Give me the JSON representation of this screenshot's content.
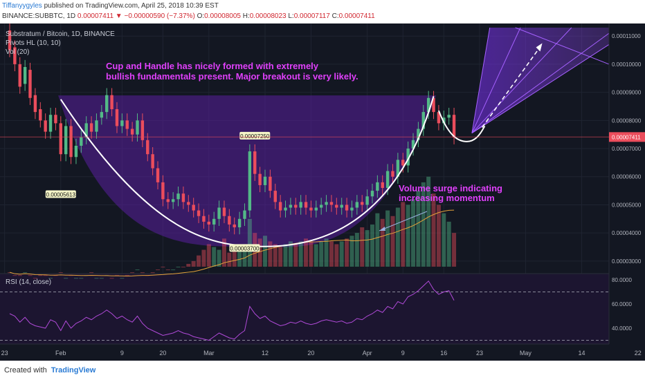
{
  "header": {
    "author": "Tiffanyygyles",
    "published_text": "published on TradingView.com, April 25, 2018 10:39 EST",
    "symbol": "BINANCE:SUBBTC, 1D",
    "last_price": "0.00007411",
    "change": "▼ −0.00000590 (−7.37%)",
    "o_label": "O:",
    "o_value": "0.00008005",
    "h_label": "H:",
    "h_value": "0.00008023",
    "l_label": "L:",
    "l_value": "0.00007117",
    "c_label": "C:",
    "c_value": "0.00007411"
  },
  "legend": {
    "pair": "Substratum / Bitcoin, 1D, BINANCE",
    "pivots": "Pivots HL (10, 10)",
    "vol": "Vol (20)",
    "rsi": "RSI (14, close)"
  },
  "annotations": {
    "cup_line1": "Cup and Handle has nicely formed with extremely",
    "cup_line2": "bullish fundamentals present. Major breakout is very likely.",
    "vol_line1": "Volume surge indicating",
    "vol_line2": "increasing momentum"
  },
  "footer": {
    "created_with": "Created with",
    "brand": "TradingView"
  },
  "colors": {
    "up": "#53b987",
    "down": "#eb4d5c",
    "purple": "#8b2bd8",
    "annotation": "#e040fb",
    "bg": "#131722"
  },
  "chart_data": {
    "type": "candlestick",
    "price_axis": [
      "0.00011000",
      "0.00010000",
      "0.00009000",
      "0.00008000",
      "0.00007000",
      "0.00006000",
      "0.00005000",
      "0.00004000",
      "0.00003000"
    ],
    "price_ticks": [
      0.00011,
      0.0001,
      9e-05,
      8e-05,
      7e-05,
      6e-05,
      5e-05,
      4e-05,
      3e-05
    ],
    "price_range": [
      2.8e-05,
      0.000113
    ],
    "last_price_label": "0.00007411",
    "last_price": 7.411e-05,
    "pivot_labels": [
      {
        "text": "0.00005613",
        "index": 10,
        "value": 5.613e-05,
        "pos": "below"
      },
      {
        "text": "0.00007250",
        "index": 48,
        "value": 7.25e-05,
        "pos": "above"
      },
      {
        "text": "0.00003700",
        "index": 46,
        "value": 3.7e-05,
        "pos": "below"
      }
    ],
    "time_axis": [
      "23",
      "Feb",
      "9",
      "20",
      "Mar",
      "12",
      "20",
      "Apr",
      "9",
      "16",
      "23",
      "May",
      "14",
      "22"
    ],
    "time_axis_index": [
      -1,
      10,
      22,
      30,
      39,
      50,
      59,
      70,
      77,
      85,
      92,
      101,
      112,
      123
    ],
    "candles": [
      [
        0.000112,
        0.000105
      ],
      [
        0.000106,
        0.0001
      ],
      [
        0.0001,
        9.2e-05
      ],
      [
        9.3e-05,
        9.9e-05
      ],
      [
        9.8e-05,
        8.8e-05
      ],
      [
        8.9e-05,
        8.3e-05
      ],
      [
        8.4e-05,
        8e-05
      ],
      [
        8e-05,
        7.6e-05
      ],
      [
        7.6e-05,
        8.2e-05
      ],
      [
        8.2e-05,
        7.9e-05
      ],
      [
        7.9e-05,
        6.8e-05
      ],
      [
        6.8e-05,
        7.8e-05
      ],
      [
        7.8e-05,
        6.7e-05
      ],
      [
        6.7e-05,
        7.1e-05
      ],
      [
        7.1e-05,
        7.4e-05
      ],
      [
        7.4e-05,
        7.9e-05
      ],
      [
        7.9e-05,
        7.6e-05
      ],
      [
        7.6e-05,
        8e-05
      ],
      [
        8.1e-05,
        8.3e-05
      ],
      [
        8.3e-05,
        8.9e-05
      ],
      [
        8.9e-05,
        8.4e-05
      ],
      [
        8.4e-05,
        7.8e-05
      ],
      [
        7.8e-05,
        8e-05
      ],
      [
        8e-05,
        7.7e-05
      ],
      [
        7.7e-05,
        7.5e-05
      ],
      [
        7.5e-05,
        8e-05
      ],
      [
        8e-05,
        7.3e-05
      ],
      [
        7.3e-05,
        6.8e-05
      ],
      [
        6.8e-05,
        6.3e-05
      ],
      [
        6.3e-05,
        5.8e-05
      ],
      [
        5.8e-05,
        5.2e-05
      ],
      [
        5.2e-05,
        5.1e-05
      ],
      [
        5.1e-05,
        5.2e-05
      ],
      [
        5.2e-05,
        5.4e-05
      ],
      [
        5.4e-05,
        5.1e-05
      ],
      [
        5.1e-05,
        5e-05
      ],
      [
        5e-05,
        4.8e-05
      ],
      [
        4.8e-05,
        4.6e-05
      ],
      [
        4.6e-05,
        4.4e-05
      ],
      [
        4.4e-05,
        4.3e-05
      ],
      [
        4.3e-05,
        4.5e-05
      ],
      [
        4.5e-05,
        4.9e-05
      ],
      [
        4.9e-05,
        4.6e-05
      ],
      [
        4.6e-05,
        4.3e-05
      ],
      [
        4.3e-05,
        4.2e-05
      ],
      [
        4.2e-05,
        4.5e-05
      ],
      [
        4.5e-05,
        4.8e-05
      ],
      [
        4.8e-05,
        6.9e-05
      ],
      [
        6.9e-05,
        6.1e-05
      ],
      [
        6.1e-05,
        5.7e-05
      ],
      [
        5.7e-05,
        6e-05
      ],
      [
        6e-05,
        5.5e-05
      ],
      [
        5.5e-05,
        5.1e-05
      ],
      [
        5.1e-05,
        4.8e-05
      ],
      [
        4.8e-05,
        4.9e-05
      ],
      [
        4.9e-05,
        5e-05
      ],
      [
        5e-05,
        4.9e-05
      ],
      [
        4.9e-05,
        5.1e-05
      ],
      [
        5.1e-05,
        4.9e-05
      ],
      [
        4.9e-05,
        4.8e-05
      ],
      [
        4.8e-05,
        4.9e-05
      ],
      [
        4.9e-05,
        5e-05
      ],
      [
        5e-05,
        5.1e-05
      ],
      [
        5.1e-05,
        5e-05
      ],
      [
        5e-05,
        4.9e-05
      ],
      [
        4.9e-05,
        5e-05
      ],
      [
        5e-05,
        4.8e-05
      ],
      [
        4.8e-05,
        4.9e-05
      ],
      [
        4.9e-05,
        5.1e-05
      ],
      [
        5.1e-05,
        5e-05
      ],
      [
        5e-05,
        5.3e-05
      ],
      [
        5.3e-05,
        5.5e-05
      ],
      [
        5.5e-05,
        5.8e-05
      ],
      [
        5.8e-05,
        5.6e-05
      ],
      [
        5.6e-05,
        6.2e-05
      ],
      [
        6.2e-05,
        6e-05
      ],
      [
        6e-05,
        6.6e-05
      ],
      [
        6.6e-05,
        6.4e-05
      ],
      [
        6.4e-05,
        7e-05
      ],
      [
        7e-05,
        7.3e-05
      ],
      [
        7.3e-05,
        7.7e-05
      ],
      [
        7.7e-05,
        8.3e-05
      ],
      [
        8.3e-05,
        8.8e-05
      ],
      [
        8.8e-05,
        8.3e-05
      ],
      [
        8.3e-05,
        7.9e-05
      ],
      [
        7.9e-05,
        8.1e-05
      ],
      [
        8.1e-05,
        8.2e-05
      ],
      [
        8.2e-05,
        7.4e-05
      ]
    ],
    "volume": [
      26,
      25,
      25,
      26,
      25,
      24,
      25,
      25,
      24,
      25,
      26,
      24,
      25,
      24,
      24,
      25,
      26,
      24,
      24,
      25,
      24,
      25,
      24,
      25,
      26,
      27,
      26,
      25,
      26,
      27,
      28,
      27,
      27,
      28,
      28,
      29,
      30,
      32,
      34,
      36,
      35,
      34,
      38,
      33,
      34,
      35,
      36,
      45,
      40,
      38,
      39,
      37,
      36,
      35,
      36,
      37,
      36,
      37,
      38,
      37,
      36,
      37,
      38,
      37,
      36,
      37,
      38,
      39,
      40,
      42,
      41,
      43,
      47,
      45,
      48,
      46,
      49,
      51,
      50,
      52,
      55,
      58,
      60,
      54,
      50,
      47,
      44,
      40
    ],
    "rsi_axis": [
      "80.0000",
      "60.0000",
      "40.0000"
    ],
    "rsi_ticks": [
      80,
      60,
      40
    ],
    "rsi_range": [
      28,
      84
    ],
    "rsi_bands": [
      70,
      30
    ],
    "rsi": [
      52,
      50,
      45,
      49,
      44,
      42,
      41,
      40,
      47,
      45,
      38,
      46,
      40,
      44,
      46,
      49,
      47,
      50,
      52,
      55,
      52,
      48,
      50,
      47,
      45,
      50,
      44,
      40,
      38,
      36,
      34,
      35,
      36,
      38,
      36,
      35,
      33,
      32,
      31,
      30,
      33,
      36,
      34,
      32,
      31,
      35,
      38,
      58,
      52,
      48,
      50,
      46,
      44,
      42,
      43,
      45,
      44,
      46,
      44,
      43,
      44,
      46,
      47,
      46,
      45,
      46,
      44,
      45,
      48,
      47,
      50,
      52,
      55,
      53,
      58,
      56,
      62,
      60,
      66,
      68,
      71,
      75,
      79,
      72,
      68,
      70,
      71,
      63
    ]
  }
}
